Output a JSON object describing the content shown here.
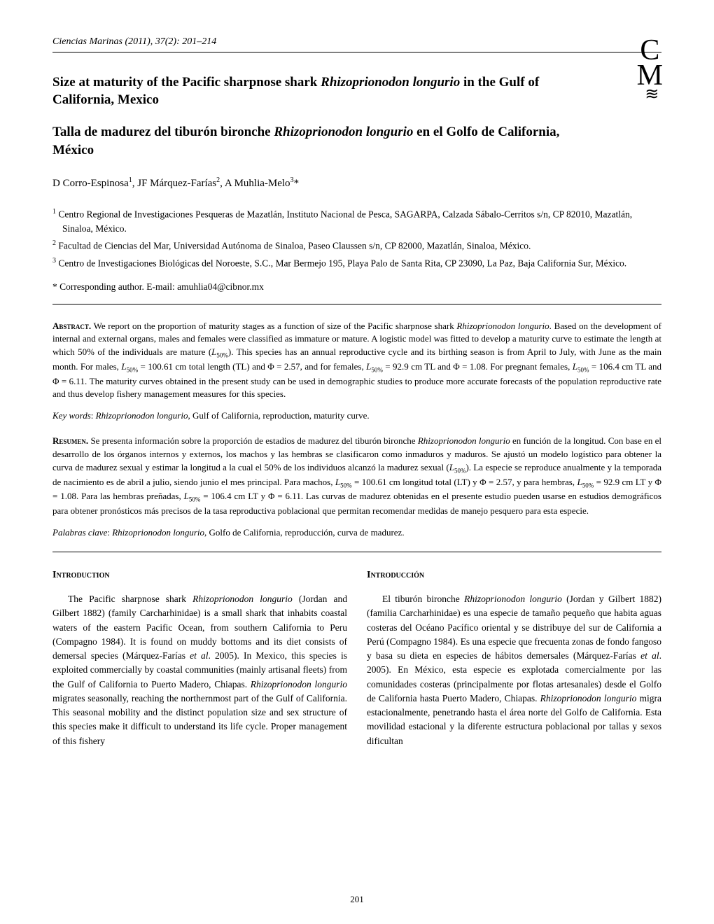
{
  "journal": {
    "name": "Ciencias Marinas",
    "year": "(2011)",
    "issue": "37(2): 201–214"
  },
  "logo": {
    "c": "C",
    "m": "M",
    "waves": "≋"
  },
  "title_en": {
    "pre": "Size at maturity of the Pacific sharpnose shark ",
    "species": "Rhizoprionodon longurio",
    "post": " in the Gulf of California, Mexico"
  },
  "title_es": {
    "pre": "Talla de madurez del tiburón bironche ",
    "species": "Rhizoprionodon longurio",
    "post": " en el Golfo de California, México"
  },
  "authors": {
    "a1": "D Corro-Espinosa",
    "s1": "1",
    "a2": ", JF Márquez-Farías",
    "s2": "2",
    "a3": ", A Muhlia-Melo",
    "s3": "3",
    "star": "*"
  },
  "affiliations": {
    "n1": "1",
    "t1": " Centro Regional de Investigaciones Pesqueras de Mazatlán, Instituto Nacional de Pesca, SAGARPA, Calzada Sábalo-Cerritos s/n, CP 82010, Mazatlán, Sinaloa, México.",
    "n2": "2",
    "t2": " Facultad de Ciencias del Mar, Universidad Autónoma de Sinaloa, Paseo Claussen s/n, CP 82000, Mazatlán, Sinaloa, México.",
    "n3": "3",
    "t3": " Centro de Investigaciones Biológicas del Noroeste, S.C., Mar Bermejo 195, Playa Palo de Santa Rita, CP 23090, La Paz, Baja California Sur, México."
  },
  "corresponding": "* Corresponding author. E-mail: amuhlia04@cibnor.mx",
  "abstract_en": {
    "label": "Abstract.",
    "p1": " We report on the proportion of maturity stages as a function of size of the Pacific sharpnose shark ",
    "sp": "Rhizoprionodon longurio",
    "p2": ". Based on the development of internal and external organs, males and females were classified as immature or mature. A logistic model was fitted to develop a maturity curve to estimate the length at which 50% of the individuals are mature (",
    "L": "L",
    "sub50a": "50%",
    "p3": "). This species has an annual reproductive cycle and its birthing season is from April to July, with June as the main month. For males, ",
    "L2": "L",
    "sub50b": "50%",
    "p4": " = 100.61 cm total length (TL) and Φ = 2.57, and for females, ",
    "L3": "L",
    "sub50c": "50%",
    "p5": " = 92.9 cm TL and Φ = 1.08. For pregnant females, ",
    "L4": "L",
    "sub50d": "50%",
    "p6": " = 106.4 cm TL and Φ = 6.11. The maturity curves obtained in the present study can be used in demographic studies to produce more accurate forecasts of the population reproductive rate and thus develop fishery management measures for this species."
  },
  "keywords_en": {
    "label": "Key words",
    "sep": ": ",
    "sp": "Rhizoprionodon longurio",
    "rest": ", Gulf of California, reproduction, maturity curve."
  },
  "abstract_es": {
    "label": "Resumen.",
    "p1": " Se presenta información sobre la proporción de estadios de madurez del tiburón bironche ",
    "sp": "Rhizoprionodon longurio",
    "p2": " en función de la longitud. Con base en el desarrollo de los órganos internos y externos, los machos y las hembras se clasificaron como inmaduros y maduros. Se ajustó un modelo logístico para obtener la curva de madurez sexual y estimar la longitud a la cual el 50% de los individuos alcanzó la madurez sexual (",
    "L": "L",
    "sub50a": "50%",
    "p3": "). La especie se reproduce anualmente y la temporada de nacimiento es de abril a julio, siendo junio el mes principal. Para machos, ",
    "L2": "L",
    "sub50b": "50%",
    "p4": " = 100.61 cm longitud total (LT) y Φ = 2.57, y para hembras, ",
    "L3": "L",
    "sub50c": "50%",
    "p5": " = 92.9 cm LT y Φ = 1.08. Para las hembras preñadas, ",
    "L4": "L",
    "sub50d": "50%",
    "p6": " = 106.4 cm LT y Φ = 6.11. Las curvas de madurez obtenidas en el presente estudio pueden usarse en estudios demográficos para obtener pronósticos más precisos de la tasa reproductiva poblacional que permitan recomendar medidas de manejo pesquero para esta especie."
  },
  "keywords_es": {
    "label": "Palabras clave",
    "sep": ": ",
    "sp": "Rhizoprionodon longurio",
    "rest": ", Golfo de California, reproducción, curva de madurez."
  },
  "intro_en": {
    "heading": "Introduction",
    "t1": "The Pacific sharpnose shark ",
    "sp": "Rhizoprionodon longurio",
    "t2": " (Jordan and Gilbert 1882) (family Carcharhinidae) is a small shark that inhabits coastal waters of the eastern Pacific Ocean, from southern California to Peru (Compagno 1984). It is found on muddy bottoms and its diet consists of demersal species (Márquez-Farías ",
    "etal": "et al",
    "t3": ". 2005). In Mexico, this species is exploited commercially by coastal communities (mainly artisanal fleets) from the Gulf of California to Puerto Madero, Chiapas. ",
    "sp2": "Rhizoprionodon longurio",
    "t4": " migrates seasonally, reaching the northernmost part of the Gulf of California. This seasonal mobility and the distinct population size and sex structure of this species make it difficult to understand its life cycle. Proper management of this fishery"
  },
  "intro_es": {
    "heading": "Introducción",
    "t1": "El tiburón bironche ",
    "sp": "Rhizoprionodon longurio",
    "t2": " (Jordan y Gilbert 1882) (familia Carcharhinidae) es una especie de tamaño pequeño que habita aguas costeras del Océano Pacífico oriental y se distribuye del sur de California a Perú (Compagno 1984). Es una especie que frecuenta zonas de fondo fangoso y basa su dieta en especies de hábitos demersales (Márquez-Farías ",
    "etal": "et al",
    "t3": ". 2005). En México, esta especie es explotada comercialmente por las comunidades costeras (principalmente por flotas artesanales) desde el Golfo de California hasta Puerto Madero, Chiapas. ",
    "sp2": "Rhizoprionodon longurio",
    "t4": " migra estacionalmente, penetrando hasta el área norte del Golfo de California. Esta movilidad estacional y la diferente estructura poblacional por tallas y sexos dificultan"
  },
  "page_number": "201"
}
